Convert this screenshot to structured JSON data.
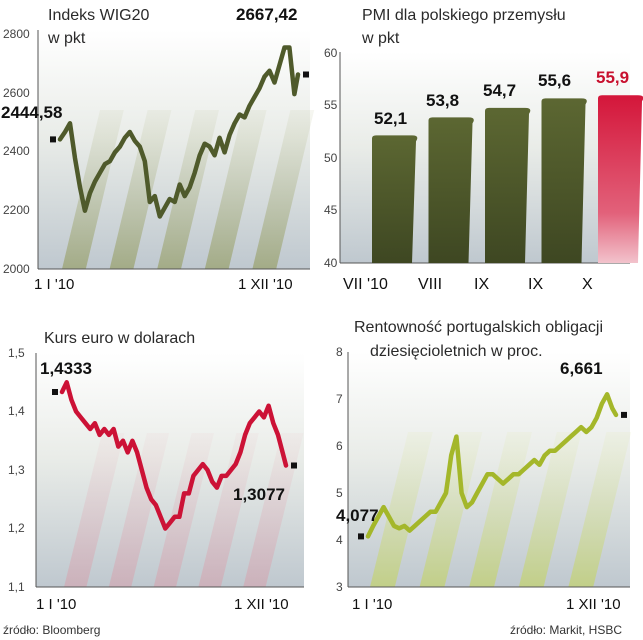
{
  "chart_data": [
    {
      "type": "line",
      "title": "Indeks WIG20",
      "subtitle": "w pkt",
      "y_ticks": [
        "2800",
        "2600",
        "2400",
        "2200",
        "2000"
      ],
      "x_tick_labels": [
        "1 I '10",
        "1 XII '10"
      ],
      "ylim": [
        2000,
        2820
      ],
      "color": "#4f5a2b",
      "x": [
        "2010-01-01",
        "2010-01-08",
        "2010-01-15",
        "2010-01-22",
        "2010-01-29",
        "2010-02-05",
        "2010-02-12",
        "2010-02-19",
        "2010-02-26",
        "2010-03-05",
        "2010-03-12",
        "2010-03-19",
        "2010-03-26",
        "2010-04-02",
        "2010-04-09",
        "2010-04-16",
        "2010-04-23",
        "2010-04-30",
        "2010-05-07",
        "2010-05-14",
        "2010-05-21",
        "2010-05-28",
        "2010-06-04",
        "2010-06-11",
        "2010-06-18",
        "2010-06-25",
        "2010-07-02",
        "2010-07-09",
        "2010-07-16",
        "2010-07-23",
        "2010-07-30",
        "2010-08-06",
        "2010-08-13",
        "2010-08-20",
        "2010-08-27",
        "2010-09-03",
        "2010-09-10",
        "2010-09-17",
        "2010-09-24",
        "2010-10-01",
        "2010-10-08",
        "2010-10-15",
        "2010-10-22",
        "2010-10-29",
        "2010-11-05",
        "2010-11-12",
        "2010-11-19",
        "2010-11-26",
        "2010-12-01"
      ],
      "values": [
        2444.58,
        2470,
        2500,
        2380,
        2280,
        2200,
        2260,
        2300,
        2330,
        2360,
        2370,
        2400,
        2420,
        2450,
        2470,
        2440,
        2420,
        2370,
        2230,
        2250,
        2180,
        2210,
        2240,
        2230,
        2290,
        2250,
        2280,
        2330,
        2390,
        2430,
        2420,
        2390,
        2450,
        2400,
        2460,
        2500,
        2530,
        2520,
        2560,
        2590,
        2620,
        2660,
        2680,
        2640,
        2700,
        2760,
        2760,
        2600,
        2667.42
      ],
      "labels": {
        "start": "2444,58",
        "end": "2667,42"
      }
    },
    {
      "type": "bar",
      "title": "PMI dla polskiego przemysłu",
      "subtitle": "w pkt",
      "y_ticks": [
        "60",
        "55",
        "50",
        "45",
        "40"
      ],
      "ylim": [
        40,
        60
      ],
      "categories": [
        "VII '10",
        "VIII",
        "IX",
        "IX",
        "X"
      ],
      "values": [
        52.1,
        53.8,
        54.7,
        55.6,
        55.9
      ],
      "value_labels": [
        "52,1",
        "53,8",
        "54,7",
        "55,6",
        "55,9"
      ],
      "colors": [
        "#4f5a2b",
        "#4f5a2b",
        "#4f5a2b",
        "#4f5a2b",
        "#c8102e"
      ]
    },
    {
      "type": "line",
      "title": "Kurs euro w dolarach",
      "y_ticks": [
        "1,5",
        "1,4",
        "1,3",
        "1,2",
        "1,1"
      ],
      "x_tick_labels": [
        "1 I '10",
        "1 XII '10"
      ],
      "ylim": [
        1.1,
        1.5
      ],
      "color": "#cc1236",
      "x": [
        "2010-01-01",
        "2010-01-08",
        "2010-01-15",
        "2010-01-22",
        "2010-01-29",
        "2010-02-05",
        "2010-02-12",
        "2010-02-19",
        "2010-02-26",
        "2010-03-05",
        "2010-03-12",
        "2010-03-19",
        "2010-03-26",
        "2010-04-02",
        "2010-04-09",
        "2010-04-16",
        "2010-04-23",
        "2010-04-30",
        "2010-05-07",
        "2010-05-14",
        "2010-05-21",
        "2010-05-28",
        "2010-06-04",
        "2010-06-11",
        "2010-06-18",
        "2010-06-25",
        "2010-07-02",
        "2010-07-09",
        "2010-07-16",
        "2010-07-23",
        "2010-07-30",
        "2010-08-06",
        "2010-08-13",
        "2010-08-20",
        "2010-08-27",
        "2010-09-03",
        "2010-09-10",
        "2010-09-17",
        "2010-09-24",
        "2010-10-01",
        "2010-10-08",
        "2010-10-15",
        "2010-10-22",
        "2010-10-29",
        "2010-11-05",
        "2010-11-12",
        "2010-11-19",
        "2010-11-26",
        "2010-12-01"
      ],
      "values": [
        1.4333,
        1.45,
        1.42,
        1.4,
        1.39,
        1.38,
        1.37,
        1.38,
        1.36,
        1.37,
        1.36,
        1.37,
        1.34,
        1.35,
        1.33,
        1.35,
        1.33,
        1.3,
        1.27,
        1.25,
        1.24,
        1.22,
        1.2,
        1.21,
        1.22,
        1.22,
        1.26,
        1.26,
        1.29,
        1.3,
        1.31,
        1.3,
        1.28,
        1.27,
        1.29,
        1.29,
        1.3,
        1.31,
        1.33,
        1.36,
        1.38,
        1.39,
        1.4,
        1.39,
        1.41,
        1.38,
        1.36,
        1.33,
        1.3077
      ],
      "labels": {
        "start": "1,4333",
        "end": "1,3077"
      }
    },
    {
      "type": "line",
      "title": "Rentowność portugalskich obligacji",
      "subtitle": "dziesięcioletnich w proc.",
      "y_ticks": [
        "8",
        "7",
        "6",
        "5",
        "4",
        "3"
      ],
      "x_tick_labels": [
        "1 I '10",
        "1 XII '10"
      ],
      "ylim": [
        3,
        8
      ],
      "color": "#a4b72a",
      "x": [
        "2010-01-01",
        "2010-01-08",
        "2010-01-15",
        "2010-01-22",
        "2010-01-29",
        "2010-02-05",
        "2010-02-12",
        "2010-02-19",
        "2010-02-26",
        "2010-03-05",
        "2010-03-12",
        "2010-03-19",
        "2010-03-26",
        "2010-04-02",
        "2010-04-09",
        "2010-04-16",
        "2010-04-23",
        "2010-04-30",
        "2010-05-07",
        "2010-05-14",
        "2010-05-21",
        "2010-05-28",
        "2010-06-04",
        "2010-06-11",
        "2010-06-18",
        "2010-06-25",
        "2010-07-02",
        "2010-07-09",
        "2010-07-16",
        "2010-07-23",
        "2010-07-30",
        "2010-08-06",
        "2010-08-13",
        "2010-08-20",
        "2010-08-27",
        "2010-09-03",
        "2010-09-10",
        "2010-09-17",
        "2010-09-24",
        "2010-10-01",
        "2010-10-08",
        "2010-10-15",
        "2010-10-22",
        "2010-10-29",
        "2010-11-05",
        "2010-11-12",
        "2010-11-19",
        "2010-11-26",
        "2010-12-01"
      ],
      "values": [
        4.077,
        4.3,
        4.5,
        4.7,
        4.5,
        4.3,
        4.25,
        4.3,
        4.2,
        4.3,
        4.4,
        4.5,
        4.6,
        4.6,
        4.8,
        5.0,
        5.8,
        6.2,
        5.0,
        4.7,
        4.8,
        5.0,
        5.2,
        5.4,
        5.4,
        5.3,
        5.2,
        5.3,
        5.4,
        5.4,
        5.5,
        5.6,
        5.7,
        5.6,
        5.8,
        5.9,
        5.9,
        6.0,
        6.1,
        6.2,
        6.3,
        6.4,
        6.3,
        6.4,
        6.6,
        6.9,
        7.1,
        6.8,
        6.661
      ],
      "labels": {
        "start": "4,077",
        "end": "6,661"
      }
    }
  ],
  "sources": {
    "left": "źródło: Bloomberg",
    "right": "źródło: Markit, HSBC"
  }
}
